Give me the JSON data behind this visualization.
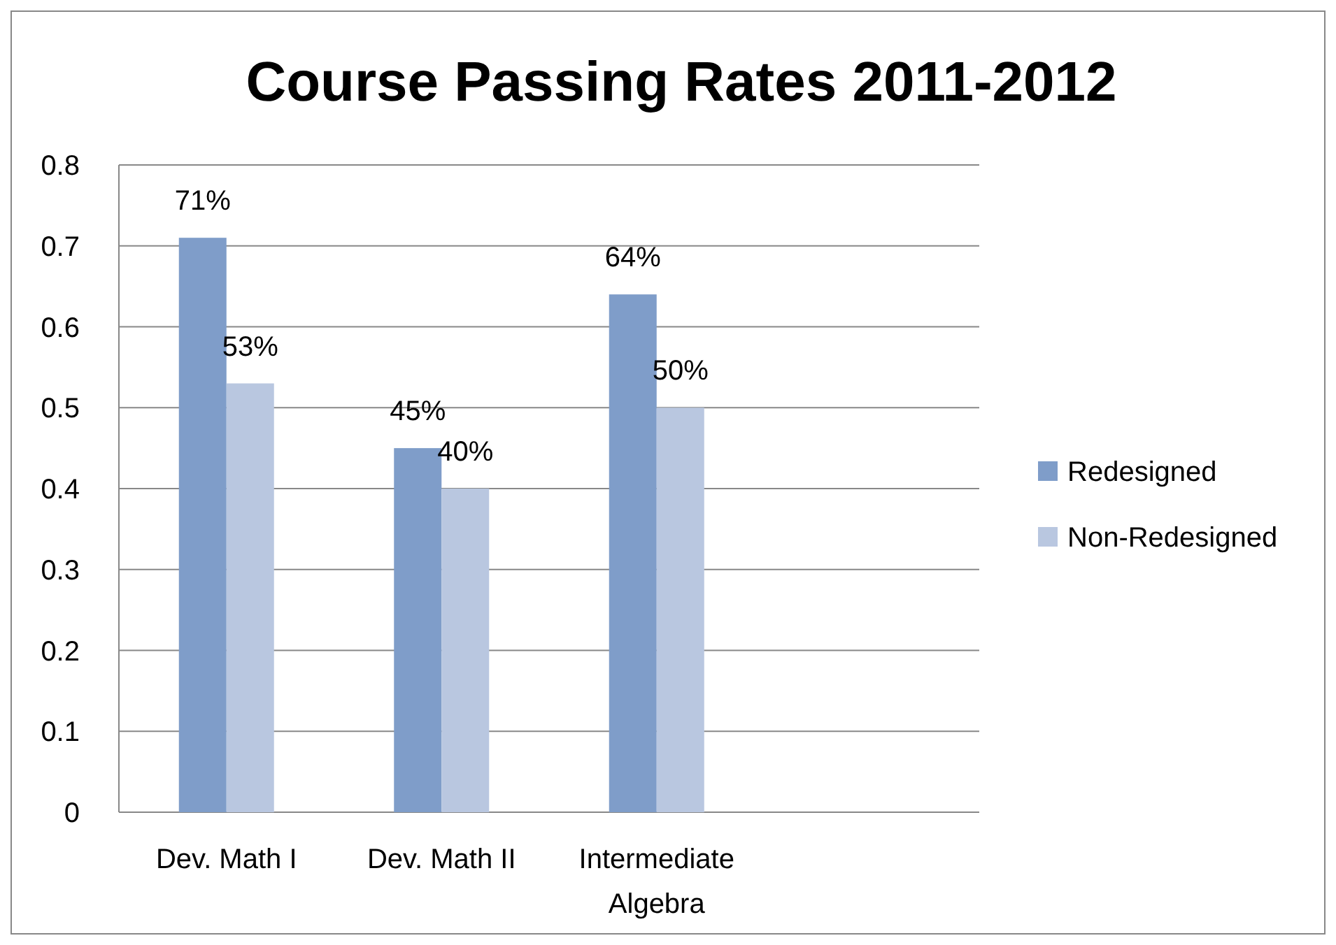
{
  "chart_data": {
    "type": "bar",
    "title": "Course Passing Rates 2011-2012",
    "categories": [
      "Dev. Math I",
      "Dev. Math II",
      "Intermediate Algebra",
      null
    ],
    "series": [
      {
        "name": "Redesigned",
        "color": "#7f9dc9",
        "values": [
          0.71,
          0.45,
          0.64,
          null
        ],
        "value_labels": [
          "71%",
          "45%",
          "64%",
          null
        ]
      },
      {
        "name": "Non-Redesigned",
        "color": "#b9c7e0",
        "values": [
          0.53,
          0.4,
          0.5,
          null
        ],
        "value_labels": [
          "53%",
          "40%",
          "50%",
          null
        ]
      }
    ],
    "ylim": [
      0,
      0.8
    ],
    "yticks": [
      0,
      0.1,
      0.2,
      0.3,
      0.4,
      0.5,
      0.6,
      0.7,
      0.8
    ],
    "grid": "y",
    "legend": "right"
  }
}
